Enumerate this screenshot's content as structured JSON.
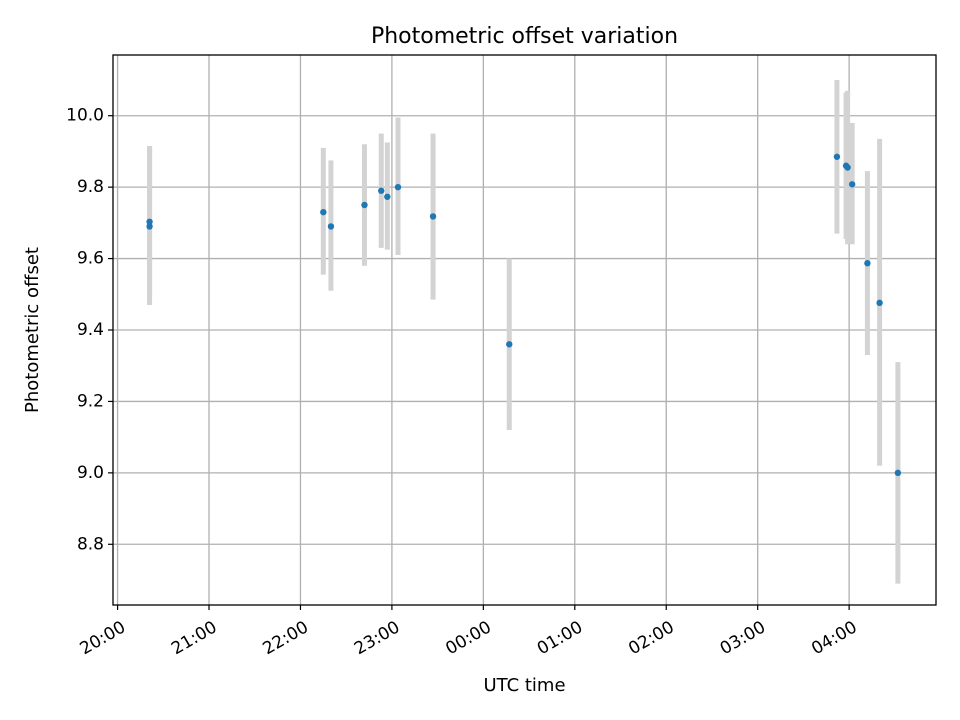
{
  "chart_data": {
    "type": "scatter",
    "title": "Photometric offset variation",
    "xlabel": "UTC time",
    "ylabel": "Photometric offset",
    "x_unit": "UTC time (HH:MM), 20:00 to 04:00 next day",
    "xlim": [
      "19:57",
      "04:57"
    ],
    "ylim": [
      8.63,
      10.17
    ],
    "grid": true,
    "x_ticks": [
      "20:00",
      "21:00",
      "22:00",
      "23:00",
      "00:00",
      "01:00",
      "02:00",
      "03:00",
      "04:00"
    ],
    "y_ticks": [
      "8.8",
      "9.0",
      "9.2",
      "9.4",
      "9.6",
      "9.8",
      "10.0"
    ],
    "colors": {
      "points": "#1f77b4",
      "error_bars": "#d3d3d3",
      "grid": "#b0b0b0"
    },
    "series": [
      {
        "points": [
          {
            "x": "20:21",
            "y": 9.69,
            "ylo": 9.47,
            "yhi": 9.915
          },
          {
            "x": "20:21",
            "y": 9.703,
            "ylo": 9.49,
            "yhi": 9.915
          },
          {
            "x": "22:15",
            "y": 9.73,
            "ylo": 9.555,
            "yhi": 9.91
          },
          {
            "x": "22:20",
            "y": 9.69,
            "ylo": 9.51,
            "yhi": 9.875
          },
          {
            "x": "22:42",
            "y": 9.75,
            "ylo": 9.58,
            "yhi": 9.92
          },
          {
            "x": "22:53",
            "y": 9.79,
            "ylo": 9.63,
            "yhi": 9.95
          },
          {
            "x": "22:57",
            "y": 9.773,
            "ylo": 9.625,
            "yhi": 9.925
          },
          {
            "x": "23:04",
            "y": 9.8,
            "ylo": 9.61,
            "yhi": 9.995
          },
          {
            "x": "23:27",
            "y": 9.718,
            "ylo": 9.485,
            "yhi": 9.95
          },
          {
            "x": "00:17",
            "y": 9.36,
            "ylo": 9.12,
            "yhi": 9.6
          },
          {
            "x": "03:52",
            "y": 9.885,
            "ylo": 9.67,
            "yhi": 10.1
          },
          {
            "x": "03:58",
            "y": 9.86,
            "ylo": 9.655,
            "yhi": 10.065
          },
          {
            "x": "03:59",
            "y": 9.855,
            "ylo": 9.64,
            "yhi": 10.07
          },
          {
            "x": "04:02",
            "y": 9.808,
            "ylo": 9.64,
            "yhi": 9.98
          },
          {
            "x": "04:12",
            "y": 9.587,
            "ylo": 9.33,
            "yhi": 9.845
          },
          {
            "x": "04:20",
            "y": 9.476,
            "ylo": 9.02,
            "yhi": 9.935
          },
          {
            "x": "04:32",
            "y": 9.0,
            "ylo": 8.69,
            "yhi": 9.31
          }
        ]
      }
    ]
  }
}
